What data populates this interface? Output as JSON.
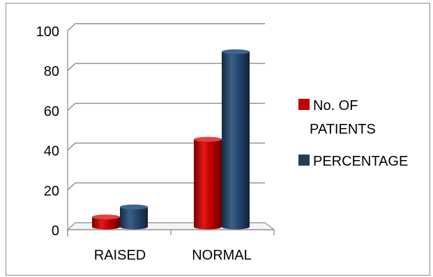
{
  "chart_data": {
    "type": "bar",
    "title": "",
    "xlabel": "",
    "ylabel": "",
    "categories": [
      "RAISED",
      "NORMAL"
    ],
    "series": [
      {
        "name": "No. OF PATIENTS",
        "values": [
          5,
          44
        ],
        "color": "#c00000"
      },
      {
        "name": "PERCENTAGE",
        "values": [
          10,
          88
        ],
        "color": "#1f3d5f"
      }
    ],
    "ylim": [
      0,
      100
    ],
    "yticks": [
      0,
      20,
      40,
      60,
      80,
      100
    ],
    "grid": true,
    "legend_position": "right",
    "style": "3d-cylinder"
  },
  "legend": {
    "items": [
      {
        "label_lines": [
          "No. OF",
          "PATIENTS"
        ],
        "color": "#c00000"
      },
      {
        "label_lines": [
          "PERCENTAGE"
        ],
        "color": "#1f3d5f"
      }
    ]
  }
}
